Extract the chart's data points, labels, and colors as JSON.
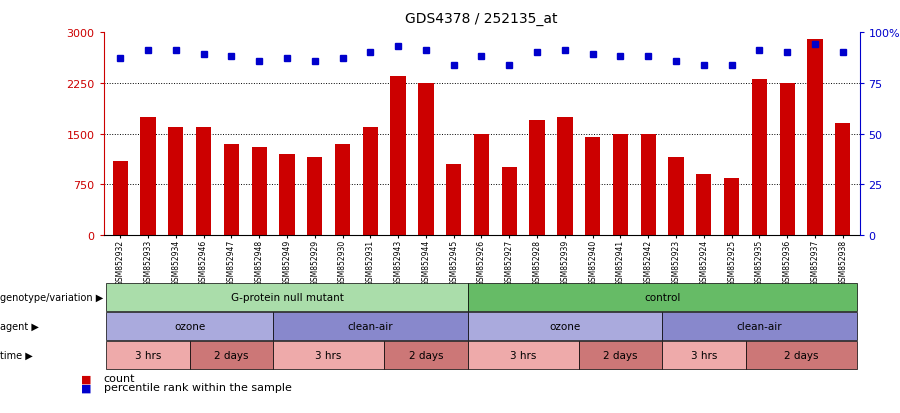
{
  "title": "GDS4378 / 252135_at",
  "samples": [
    "GSM852932",
    "GSM852933",
    "GSM852934",
    "GSM852946",
    "GSM852947",
    "GSM852948",
    "GSM852949",
    "GSM852929",
    "GSM852930",
    "GSM852931",
    "GSM852943",
    "GSM852944",
    "GSM852945",
    "GSM852926",
    "GSM852927",
    "GSM852928",
    "GSM852939",
    "GSM852940",
    "GSM852941",
    "GSM852942",
    "GSM852923",
    "GSM852924",
    "GSM852925",
    "GSM852935",
    "GSM852936",
    "GSM852937",
    "GSM852938"
  ],
  "counts": [
    1100,
    1750,
    1600,
    1600,
    1350,
    1300,
    1200,
    1150,
    1350,
    1600,
    2350,
    2250,
    1050,
    1500,
    1000,
    1700,
    1750,
    1450,
    1500,
    1500,
    1150,
    900,
    850,
    2300,
    2250,
    2900,
    1650
  ],
  "percentiles": [
    87,
    91,
    91,
    89,
    88,
    86,
    87,
    86,
    87,
    90,
    93,
    91,
    84,
    88,
    84,
    90,
    91,
    89,
    88,
    88,
    86,
    84,
    84,
    91,
    90,
    94,
    90
  ],
  "ylim_left": [
    0,
    3000
  ],
  "ylim_right": [
    0,
    100
  ],
  "yticks_left": [
    0,
    750,
    1500,
    2250,
    3000
  ],
  "yticks_right": [
    0,
    25,
    50,
    75,
    100
  ],
  "bar_color": "#cc0000",
  "dot_color": "#0000cc",
  "genotype_groups": [
    {
      "label": "G-protein null mutant",
      "start": 0,
      "end": 13,
      "color": "#aaddaa"
    },
    {
      "label": "control",
      "start": 13,
      "end": 27,
      "color": "#66bb66"
    }
  ],
  "agent_groups": [
    {
      "label": "ozone",
      "start": 0,
      "end": 6,
      "color": "#aaaadd"
    },
    {
      "label": "clean-air",
      "start": 6,
      "end": 13,
      "color": "#8888cc"
    },
    {
      "label": "ozone",
      "start": 13,
      "end": 20,
      "color": "#aaaadd"
    },
    {
      "label": "clean-air",
      "start": 20,
      "end": 27,
      "color": "#8888cc"
    }
  ],
  "time_groups": [
    {
      "label": "3 hrs",
      "start": 0,
      "end": 3,
      "color": "#eeaaaa"
    },
    {
      "label": "2 days",
      "start": 3,
      "end": 6,
      "color": "#cc7777"
    },
    {
      "label": "3 hrs",
      "start": 6,
      "end": 10,
      "color": "#eeaaaa"
    },
    {
      "label": "2 days",
      "start": 10,
      "end": 13,
      "color": "#cc7777"
    },
    {
      "label": "3 hrs",
      "start": 13,
      "end": 17,
      "color": "#eeaaaa"
    },
    {
      "label": "2 days",
      "start": 17,
      "end": 20,
      "color": "#cc7777"
    },
    {
      "label": "3 hrs",
      "start": 20,
      "end": 23,
      "color": "#eeaaaa"
    },
    {
      "label": "2 days",
      "start": 23,
      "end": 27,
      "color": "#cc7777"
    }
  ],
  "legend_items": [
    {
      "color": "#cc0000",
      "label": "count"
    },
    {
      "color": "#0000cc",
      "label": "percentile rank within the sample"
    }
  ],
  "bg_color": "#ffffff",
  "xlim": [
    -0.6,
    26.6
  ]
}
